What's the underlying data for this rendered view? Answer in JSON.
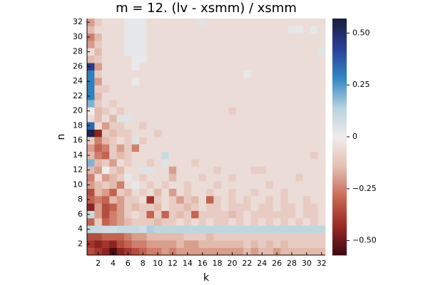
{
  "chart_data": {
    "type": "heatmap",
    "title": "m = 12. (lv - xsmm) / xsmm",
    "x_label": "k",
    "y_label": "n",
    "x": [
      1,
      2,
      3,
      4,
      5,
      6,
      7,
      8,
      9,
      10,
      11,
      12,
      13,
      14,
      15,
      16,
      17,
      18,
      19,
      20,
      21,
      22,
      23,
      24,
      25,
      26,
      27,
      28,
      29,
      30,
      31,
      32
    ],
    "y": [
      1,
      2,
      3,
      4,
      5,
      6,
      7,
      8,
      9,
      10,
      11,
      12,
      13,
      14,
      15,
      16,
      17,
      18,
      19,
      20,
      21,
      22,
      23,
      24,
      25,
      26,
      27,
      28,
      29,
      30,
      31,
      32
    ],
    "xlim": [
      0.5,
      32.5
    ],
    "ylim": [
      0.5,
      32.5
    ],
    "xticks": [
      2,
      4,
      6,
      8,
      10,
      12,
      14,
      16,
      18,
      20,
      22,
      24,
      26,
      28,
      30,
      32
    ],
    "yticks": [
      2,
      4,
      6,
      8,
      10,
      12,
      14,
      16,
      18,
      20,
      22,
      24,
      26,
      28,
      30,
      32
    ],
    "zlim": [
      -0.57,
      0.57
    ],
    "zticks": [
      {
        "value": -0.5,
        "label": "−0.50"
      },
      {
        "value": -0.25,
        "label": "−0.25"
      },
      0,
      {
        "value": 0.25,
        "label": "0.25"
      },
      {
        "value": 0.5,
        "label": "0.50"
      }
    ],
    "colorscale": [
      "#3c0912",
      "#9b2a25",
      "#c86a55",
      "#e4bfb2",
      "#f1ecec",
      "#b7d2dc",
      "#2f86c4",
      "#2c3f9a",
      "#1b1d3b"
    ],
    "z": [
      [
        -0.35,
        -0.4,
        -0.45,
        -0.55,
        -0.45,
        -0.4,
        -0.35,
        -0.3,
        -0.25,
        -0.25,
        -0.2,
        -0.25,
        -0.2,
        -0.2,
        -0.2,
        -0.2,
        -0.2,
        -0.2,
        -0.2,
        -0.2,
        -0.2,
        -0.15,
        -0.2,
        -0.15,
        -0.15,
        -0.2,
        -0.15,
        -0.15,
        -0.15,
        -0.15,
        -0.15,
        -0.15
      ],
      [
        -0.4,
        -0.45,
        -0.4,
        -0.45,
        -0.35,
        -0.3,
        -0.25,
        -0.25,
        -0.2,
        -0.2,
        -0.2,
        -0.2,
        -0.15,
        -0.2,
        -0.2,
        -0.15,
        -0.15,
        -0.15,
        -0.15,
        -0.15,
        -0.15,
        -0.1,
        -0.15,
        -0.1,
        -0.15,
        -0.1,
        -0.15,
        -0.1,
        -0.1,
        -0.1,
        -0.1,
        -0.1
      ],
      [
        -0.35,
        -0.35,
        -0.3,
        -0.3,
        -0.3,
        -0.25,
        -0.2,
        -0.2,
        -0.15,
        -0.15,
        -0.15,
        -0.15,
        -0.15,
        -0.1,
        -0.1,
        -0.1,
        -0.15,
        -0.1,
        -0.1,
        -0.1,
        -0.1,
        -0.1,
        -0.1,
        -0.1,
        -0.1,
        -0.1,
        -0.1,
        -0.1,
        -0.1,
        -0.1,
        -0.1,
        -0.1
      ],
      [
        0.1,
        0.1,
        0.08,
        0.08,
        0.1,
        0.1,
        0.1,
        0.08,
        0.15,
        0.12,
        0.12,
        0.12,
        0.12,
        0.12,
        0.12,
        0.12,
        0.12,
        0.12,
        0.12,
        0.12,
        0.12,
        0.12,
        0.12,
        0.12,
        0.12,
        0.12,
        0.12,
        0.12,
        0.12,
        0.12,
        0.12,
        0.12
      ],
      [
        -0.3,
        -0.1,
        -0.3,
        -0.25,
        -0.2,
        -0.15,
        -0.1,
        -0.1,
        -0.1,
        -0.15,
        -0.1,
        -0.1,
        -0.05,
        -0.1,
        -0.05,
        -0.1,
        -0.05,
        -0.1,
        -0.1,
        -0.05,
        -0.1,
        -0.05,
        -0.1,
        -0.05,
        -0.1,
        -0.05,
        -0.1,
        -0.05,
        -0.1,
        -0.05,
        -0.1,
        -0.05
      ],
      [
        0.1,
        -0.2,
        -0.35,
        -0.25,
        -0.2,
        -0.1,
        -0.05,
        -0.1,
        -0.3,
        -0.1,
        -0.3,
        -0.1,
        -0.15,
        -0.1,
        -0.3,
        -0.1,
        -0.1,
        -0.1,
        -0.1,
        -0.15,
        -0.1,
        -0.05,
        -0.1,
        -0.1,
        -0.1,
        -0.1,
        -0.1,
        -0.1,
        -0.05,
        -0.1,
        -0.1,
        -0.05
      ],
      [
        -0.45,
        -0.2,
        -0.35,
        -0.3,
        -0.2,
        -0.1,
        -0.15,
        -0.1,
        -0.1,
        -0.15,
        -0.05,
        -0.1,
        -0.1,
        -0.15,
        -0.1,
        -0.05,
        -0.1,
        -0.1,
        -0.05,
        -0.1,
        -0.1,
        -0.1,
        -0.05,
        -0.1,
        -0.1,
        -0.05,
        -0.1,
        -0.1,
        -0.05,
        -0.1,
        -0.1,
        -0.05
      ],
      [
        -0.3,
        -0.25,
        -0.3,
        -0.15,
        -0.2,
        -0.1,
        -0.1,
        -0.05,
        -0.4,
        -0.1,
        -0.05,
        -0.1,
        -0.2,
        -0.1,
        -0.15,
        -0.05,
        -0.3,
        -0.1,
        -0.05,
        -0.1,
        -0.05,
        -0.1,
        -0.05,
        -0.05,
        -0.1,
        -0.05,
        -0.1,
        -0.05,
        -0.05,
        -0.1,
        -0.05,
        -0.05
      ],
      [
        -0.35,
        -0.15,
        -0.2,
        -0.3,
        -0.1,
        -0.15,
        -0.05,
        -0.1,
        -0.05,
        -0.15,
        -0.05,
        -0.2,
        -0.05,
        -0.1,
        -0.05,
        -0.05,
        -0.1,
        -0.05,
        -0.05,
        -0.1,
        -0.05,
        -0.05,
        -0.1,
        -0.05,
        -0.05,
        -0.05,
        -0.1,
        -0.05,
        -0.05,
        -0.05,
        -0.05,
        -0.05
      ],
      [
        -0.2,
        -0.15,
        -0.1,
        -0.15,
        -0.25,
        -0.05,
        0.02,
        -0.05,
        -0.1,
        -0.05,
        -0.1,
        -0.05,
        -0.05,
        -0.1,
        -0.05,
        -0.05,
        -0.05,
        -0.1,
        -0.05,
        -0.05,
        -0.05,
        -0.05,
        -0.05,
        -0.05,
        -0.1,
        -0.05,
        -0.05,
        -0.05,
        -0.05,
        -0.05,
        -0.05,
        -0.05
      ],
      [
        -0.25,
        -0.05,
        -0.2,
        -0.15,
        -0.1,
        0.03,
        -0.05,
        -0.1,
        -0.05,
        -0.05,
        -0.05,
        -0.15,
        -0.05,
        -0.05,
        -0.05,
        -0.1,
        -0.05,
        -0.05,
        -0.05,
        -0.1,
        -0.05,
        -0.05,
        -0.05,
        -0.05,
        -0.05,
        -0.05,
        -0.05,
        -0.05,
        -0.1,
        -0.05,
        -0.05,
        -0.05
      ],
      [
        -0.15,
        -0.2,
        0,
        -0.1,
        -0.15,
        -0.05,
        -0.05,
        0.05,
        0.05,
        -0.05,
        -0.05,
        -0.2,
        -0.05,
        -0.05,
        -0.05,
        -0.05,
        -0.05,
        -0.1,
        -0.05,
        -0.05,
        -0.05,
        -0.05,
        -0.1,
        -0.1,
        -0.05,
        -0.05,
        -0.05,
        -0.05,
        -0.05,
        -0.05,
        -0.05,
        -0.05
      ],
      [
        0.2,
        -0.15,
        -0.1,
        -0.2,
        -0.05,
        -0.1,
        -0.05,
        -0.05,
        -0.1,
        -0.05,
        0.05,
        -0.05,
        -0.05,
        -0.05,
        -0.1,
        -0.05,
        -0.05,
        -0.05,
        -0.05,
        -0.05,
        -0.05,
        -0.05,
        -0.05,
        -0.05,
        -0.05,
        -0.05,
        -0.05,
        -0.05,
        -0.05,
        -0.05,
        -0.05,
        -0.05
      ],
      [
        -0.15,
        -0.25,
        -0.3,
        -0.1,
        -0.15,
        -0.1,
        -0.05,
        -0.05,
        -0.05,
        -0.05,
        0.1,
        -0.05,
        -0.05,
        -0.05,
        -0.05,
        -0.05,
        -0.05,
        -0.05,
        -0.05,
        -0.05,
        -0.05,
        -0.05,
        -0.05,
        -0.05,
        -0.05,
        -0.05,
        -0.05,
        -0.05,
        -0.05,
        -0.05,
        -0.1,
        -0.05
      ],
      [
        -0.2,
        -0.3,
        -0.25,
        -0.1,
        -0.2,
        -0.1,
        -0.25,
        -0.05,
        -0.05,
        -0.05,
        -0.05,
        -0.05,
        -0.05,
        -0.05,
        -0.05,
        -0.05,
        -0.05,
        -0.05,
        -0.05,
        -0.05,
        -0.05,
        -0.05,
        -0.05,
        -0.05,
        -0.05,
        -0.05,
        -0.05,
        -0.05,
        -0.05,
        -0.05,
        -0.05,
        -0.05
      ],
      [
        -0.1,
        -0.25,
        -0.15,
        -0.1,
        -0.05,
        -0.1,
        0.05,
        -0.1,
        -0.05,
        -0.05,
        -0.05,
        -0.05,
        -0.05,
        -0.05,
        -0.05,
        -0.05,
        -0.05,
        -0.05,
        -0.05,
        -0.05,
        -0.05,
        -0.05,
        -0.05,
        -0.05,
        -0.05,
        -0.05,
        -0.05,
        -0.05,
        -0.05,
        -0.05,
        -0.05,
        -0.05
      ],
      [
        0.55,
        -0.45,
        -0.1,
        -0.15,
        -0.1,
        -0.1,
        -0.05,
        -0.05,
        -0.05,
        -0.1,
        -0.05,
        -0.05,
        -0.05,
        -0.05,
        -0.05,
        -0.05,
        -0.05,
        -0.05,
        -0.05,
        -0.05,
        -0.05,
        -0.05,
        -0.05,
        -0.05,
        -0.05,
        -0.05,
        -0.05,
        -0.05,
        -0.05,
        -0.05,
        -0.05,
        -0.05
      ],
      [
        0.35,
        -0.05,
        -0.2,
        -0.1,
        -0.1,
        -0.05,
        -0.05,
        -0.1,
        -0.05,
        -0.05,
        -0.05,
        -0.05,
        -0.05,
        -0.05,
        -0.05,
        -0.05,
        -0.05,
        -0.05,
        -0.05,
        -0.05,
        -0.05,
        -0.05,
        -0.05,
        -0.05,
        -0.05,
        -0.05,
        -0.05,
        -0.05,
        -0.05,
        -0.05,
        -0.05,
        -0.05
      ],
      [
        -0.05,
        -0.15,
        -0.05,
        -0.15,
        0.05,
        0.05,
        -0.05,
        -0.05,
        -0.05,
        -0.05,
        -0.05,
        -0.05,
        -0.05,
        -0.05,
        -0.05,
        -0.05,
        -0.05,
        -0.05,
        -0.05,
        -0.05,
        -0.05,
        -0.05,
        -0.05,
        -0.05,
        -0.05,
        -0.05,
        -0.05,
        -0.05,
        -0.05,
        -0.05,
        -0.05,
        -0.05
      ],
      [
        0,
        -0.15,
        -0.1,
        -0.05,
        -0.1,
        -0.05,
        -0.05,
        -0.05,
        -0.05,
        -0.05,
        -0.05,
        -0.05,
        -0.05,
        -0.05,
        -0.05,
        -0.05,
        -0.05,
        -0.05,
        -0.05,
        -0.1,
        -0.05,
        -0.05,
        -0.05,
        -0.05,
        -0.05,
        -0.05,
        -0.05,
        -0.05,
        -0.05,
        -0.05,
        -0.05,
        -0.05
      ],
      [
        0.2,
        -0.1,
        -0.05,
        -0.1,
        -0.05,
        -0.05,
        -0.05,
        -0.05,
        -0.05,
        -0.05,
        -0.05,
        -0.05,
        -0.05,
        -0.05,
        -0.05,
        -0.05,
        -0.05,
        -0.05,
        -0.05,
        -0.05,
        -0.05,
        -0.05,
        -0.05,
        -0.05,
        -0.05,
        -0.05,
        -0.05,
        -0.05,
        -0.05,
        -0.05,
        -0.05,
        -0.05
      ],
      [
        0.3,
        -0.15,
        -0.05,
        -0.05,
        -0.05,
        -0.05,
        -0.05,
        -0.05,
        -0.05,
        -0.05,
        -0.05,
        -0.05,
        -0.05,
        -0.05,
        -0.05,
        -0.05,
        -0.05,
        -0.05,
        -0.05,
        -0.05,
        -0.05,
        -0.05,
        -0.05,
        -0.05,
        -0.05,
        -0.05,
        -0.05,
        -0.05,
        -0.05,
        -0.05,
        -0.05,
        -0.05
      ],
      [
        0.3,
        -0.1,
        -0.1,
        -0.05,
        -0.05,
        -0.05,
        -0.05,
        -0.05,
        -0.05,
        -0.05,
        -0.05,
        -0.05,
        -0.05,
        -0.05,
        -0.05,
        -0.05,
        -0.05,
        -0.05,
        -0.05,
        -0.05,
        -0.05,
        -0.05,
        -0.05,
        -0.05,
        -0.05,
        -0.05,
        -0.05,
        -0.05,
        -0.05,
        -0.05,
        -0.05,
        -0.05
      ],
      [
        0.3,
        -0.2,
        -0.05,
        -0.05,
        -0.05,
        -0.05,
        0.02,
        -0.05,
        -0.05,
        -0.05,
        -0.05,
        -0.05,
        -0.05,
        -0.05,
        -0.05,
        -0.05,
        -0.05,
        -0.05,
        -0.05,
        -0.05,
        -0.05,
        -0.05,
        -0.05,
        -0.05,
        -0.05,
        -0.05,
        -0.05,
        -0.05,
        -0.05,
        -0.05,
        -0.05,
        -0.05
      ],
      [
        0.3,
        -0.1,
        -0.05,
        -0.05,
        -0.05,
        -0.05,
        -0.05,
        -0.05,
        -0.05,
        -0.05,
        -0.05,
        -0.05,
        -0.05,
        -0.05,
        -0.05,
        -0.05,
        -0.05,
        -0.05,
        -0.05,
        -0.05,
        -0.05,
        0.03,
        -0.05,
        -0.05,
        -0.05,
        -0.05,
        -0.05,
        -0.05,
        -0.05,
        -0.05,
        -0.05,
        -0.05
      ],
      [
        0.45,
        -0.2,
        -0.05,
        -0.05,
        -0.05,
        -0.05,
        0.02,
        -0.05,
        -0.05,
        -0.05,
        -0.05,
        -0.05,
        -0.05,
        -0.05,
        -0.05,
        -0.05,
        -0.05,
        -0.05,
        -0.05,
        -0.05,
        -0.05,
        -0.05,
        -0.05,
        -0.05,
        -0.05,
        -0.05,
        -0.05,
        -0.05,
        -0.05,
        -0.05,
        -0.05,
        -0.05
      ],
      [
        -0.15,
        -0.1,
        -0.05,
        -0.05,
        -0.05,
        -0.05,
        0.02,
        0.02,
        -0.05,
        -0.05,
        -0.05,
        -0.05,
        -0.05,
        -0.05,
        -0.05,
        -0.05,
        -0.05,
        -0.05,
        -0.05,
        -0.05,
        -0.05,
        -0.05,
        -0.05,
        -0.05,
        -0.05,
        -0.05,
        -0.05,
        -0.05,
        -0.05,
        -0.05,
        -0.05,
        -0.05
      ],
      [
        -0.05,
        -0.15,
        -0.05,
        -0.05,
        -0.05,
        0.03,
        0.03,
        0.03,
        -0.05,
        -0.05,
        -0.05,
        -0.05,
        -0.05,
        -0.05,
        -0.05,
        -0.05,
        -0.05,
        -0.05,
        -0.05,
        -0.05,
        -0.05,
        -0.05,
        -0.05,
        -0.05,
        -0.05,
        -0.05,
        -0.05,
        -0.05,
        -0.05,
        -0.05,
        -0.05,
        0.05
      ],
      [
        -0.2,
        -0.1,
        -0.05,
        -0.05,
        -0.05,
        0.03,
        0.03,
        0.03,
        -0.05,
        -0.05,
        -0.05,
        -0.05,
        -0.05,
        -0.05,
        -0.05,
        -0.05,
        -0.05,
        -0.05,
        -0.05,
        -0.05,
        -0.05,
        -0.05,
        -0.05,
        -0.05,
        -0.05,
        -0.05,
        -0.05,
        -0.05,
        -0.05,
        -0.05,
        -0.05,
        -0.05
      ],
      [
        -0.25,
        -0.15,
        -0.05,
        -0.05,
        -0.05,
        0.03,
        0.03,
        0.03,
        -0.05,
        -0.05,
        -0.05,
        -0.05,
        -0.05,
        -0.05,
        -0.05,
        -0.05,
        -0.05,
        -0.05,
        -0.05,
        -0.05,
        -0.05,
        -0.05,
        -0.05,
        -0.05,
        -0.05,
        -0.05,
        -0.05,
        -0.05,
        -0.05,
        -0.05,
        -0.05,
        -0.05
      ],
      [
        -0.15,
        -0.05,
        -0.05,
        -0.05,
        -0.05,
        0.03,
        0.03,
        0.03,
        -0.05,
        -0.05,
        -0.05,
        -0.05,
        -0.05,
        -0.05,
        -0.05,
        -0.05,
        -0.05,
        -0.05,
        -0.05,
        -0.05,
        -0.05,
        -0.05,
        -0.05,
        -0.05,
        -0.05,
        -0.05,
        -0.05,
        0.03,
        0.03,
        -0.05,
        0.03,
        -0.05
      ],
      [
        -0.2,
        -0.1,
        -0.05,
        -0.05,
        -0.05,
        0.03,
        0.03,
        0.03,
        -0.05,
        -0.05,
        -0.05,
        -0.05,
        -0.05,
        -0.05,
        -0.05,
        0.05,
        -0.05,
        -0.05,
        -0.05,
        -0.05,
        -0.05,
        -0.05,
        -0.05,
        -0.05,
        -0.05,
        -0.05,
        -0.05,
        -0.05,
        -0.05,
        -0.05,
        -0.05,
        -0.05
      ]
    ]
  }
}
